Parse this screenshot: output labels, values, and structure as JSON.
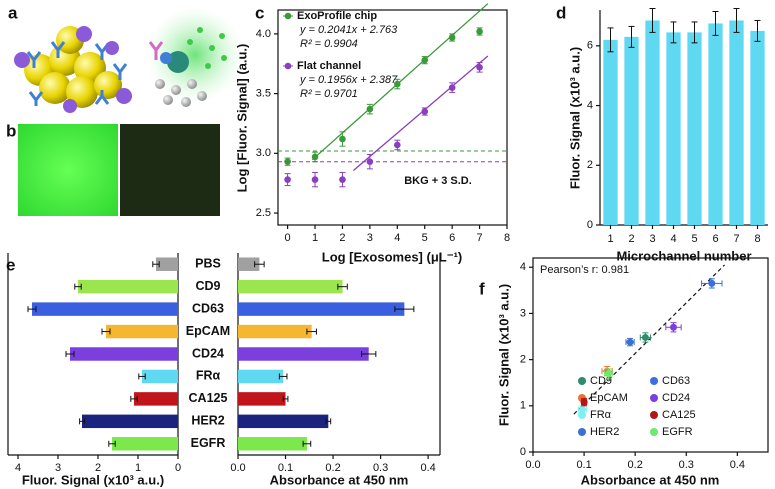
{
  "panel_a": {
    "label": "a"
  },
  "panel_b": {
    "label": "b"
  },
  "chart_data": [
    {
      "type": "line",
      "panel": "c",
      "xlabel": "Log [Exosomes] (μL⁻¹)",
      "ylabel": "Log [Fluor. Signal] (a.u.)",
      "x": [
        0,
        1,
        2,
        3,
        4,
        5,
        6,
        7
      ],
      "xlim": [
        -0.35,
        8
      ],
      "xticks": [
        0,
        1,
        2,
        3,
        4,
        5,
        6,
        7,
        8
      ],
      "ylim": [
        2.4,
        4.2
      ],
      "yticks": [
        {
          "value": 2.5,
          "label": "2.5"
        },
        {
          "value": 3,
          "label": "3.0"
        },
        {
          "value": 3.5,
          "label": "3.5"
        },
        {
          "value": 4,
          "label": "4.0"
        }
      ],
      "series": [
        {
          "name": "ExoProfile chip",
          "color": "#3a9a3a",
          "values": [
            2.93,
            2.97,
            3.12,
            3.37,
            3.58,
            3.78,
            3.97,
            4.02
          ],
          "errors": [
            0.03,
            0.04,
            0.06,
            0.04,
            0.04,
            0.03,
            0.03,
            0.03
          ],
          "equation": "y = 0.2041x + 2.763",
          "r2": "R² = 0.9904",
          "fit": {
            "slope": 0.2041,
            "intercept": 2.763,
            "x": [
              0.9,
              7.3
            ]
          },
          "background": 3.02
        },
        {
          "name": "Flat channel",
          "color": "#8a3fc0",
          "values": [
            2.78,
            2.78,
            2.78,
            2.93,
            3.07,
            3.35,
            3.55,
            3.72
          ],
          "errors": [
            0.05,
            0.06,
            0.06,
            0.06,
            0.04,
            0.03,
            0.04,
            0.04
          ],
          "equation": "y = 0.1956x + 2.387",
          "r2": "R² = 0.9701",
          "fit": {
            "slope": 0.1956,
            "intercept": 2.387,
            "x": [
              2.4,
              7.3
            ]
          },
          "background": 2.93
        }
      ],
      "background_label": "BKG + 3 S.D."
    },
    {
      "type": "bar",
      "panel": "d",
      "xlabel": "Microchannel number",
      "ylabel": "Fluor. Signal (x10³ a.u.)",
      "categories": [
        "1",
        "2",
        "3",
        "4",
        "5",
        "6",
        "7",
        "8"
      ],
      "values": [
        6.2,
        6.3,
        6.85,
        6.45,
        6.45,
        6.75,
        6.85,
        6.5
      ],
      "errors": [
        0.4,
        0.35,
        0.4,
        0.35,
        0.35,
        0.4,
        0.4,
        0.35
      ],
      "color": "#5fd8f2",
      "ylim": [
        0,
        7.2
      ],
      "yticks": [
        0,
        2,
        4,
        6
      ]
    },
    {
      "type": "mirrored-bar",
      "panel": "e",
      "categories": [
        "PBS",
        "CD9",
        "CD63",
        "EpCAM",
        "CD24",
        "FRα",
        "CA125",
        "HER2",
        "EGFR"
      ],
      "colors": [
        "#a0a0a0",
        "#9be64e",
        "#3a5fe0",
        "#f5b731",
        "#7b3fe0",
        "#5fd8f2",
        "#c0161b",
        "#1a237e",
        "#7de84b"
      ],
      "left": {
        "xlabel": "Fluor. Signal (x10³ a.u.)",
        "values": [
          0.55,
          2.5,
          3.65,
          1.8,
          2.7,
          0.9,
          1.1,
          2.4,
          1.65
        ],
        "errors": [
          0.08,
          0.08,
          0.1,
          0.1,
          0.1,
          0.08,
          0.08,
          0.06,
          0.08
        ],
        "xlim": [
          0,
          4.25
        ],
        "xticks": [
          4,
          3,
          2,
          1,
          0
        ]
      },
      "right": {
        "xlabel": "Absorbance at 450 nm",
        "values": [
          0.045,
          0.22,
          0.35,
          0.155,
          0.275,
          0.095,
          0.1,
          0.19,
          0.145
        ],
        "errors": [
          0.01,
          0.01,
          0.02,
          0.01,
          0.015,
          0.008,
          0.005,
          0.005,
          0.008
        ],
        "xlim": [
          0,
          0.425
        ],
        "xticks": [
          {
            "value": 0,
            "label": "0.0"
          },
          {
            "value": 0.1,
            "label": "0.1"
          },
          {
            "value": 0.2,
            "label": "0.2"
          },
          {
            "value": 0.3,
            "label": "0.3"
          },
          {
            "value": 0.4,
            "label": "0.4"
          }
        ]
      }
    },
    {
      "type": "scatter",
      "panel": "f",
      "xlabel": "Absorbance at 450 nm",
      "ylabel": "Fluor. Signal (x10³ a.u.)",
      "annotation": "Pearson’s r: 0.981",
      "xlim": [
        0,
        0.46
      ],
      "xticks": [
        {
          "value": 0,
          "label": "0.0"
        },
        {
          "value": 0.1,
          "label": "0.1"
        },
        {
          "value": 0.2,
          "label": "0.2"
        },
        {
          "value": 0.3,
          "label": "0.3"
        },
        {
          "value": 0.4,
          "label": "0.4"
        }
      ],
      "ylim": [
        0,
        4.2
      ],
      "yticks": [
        0,
        1,
        2,
        3,
        4
      ],
      "fit_line": {
        "x": [
          0.08,
          0.375
        ],
        "y": [
          0.82,
          4.05
        ]
      },
      "series": [
        {
          "name": "CD9",
          "color": "#2e8b6e",
          "x": [
            0.22
          ],
          "values": [
            2.48
          ],
          "xerr": [
            0.01
          ],
          "yerr": [
            0.1
          ]
        },
        {
          "name": "CD63",
          "color": "#3a6fe0",
          "x": [
            0.35
          ],
          "values": [
            3.65
          ],
          "xerr": [
            0.02
          ],
          "yerr": [
            0.1
          ]
        },
        {
          "name": "EpCAM",
          "color": "#f07030",
          "x": [
            0.145
          ],
          "values": [
            1.75
          ],
          "xerr": [
            0.01
          ],
          "yerr": [
            0.1
          ]
        },
        {
          "name": "CD24",
          "color": "#7b3fe0",
          "x": [
            0.275
          ],
          "values": [
            2.7
          ],
          "xerr": [
            0.015
          ],
          "yerr": [
            0.1
          ]
        },
        {
          "name": "FRα",
          "color": "#7ff0f0",
          "x": [
            0.097
          ],
          "values": [
            0.92
          ],
          "xerr": [
            0.008
          ],
          "yerr": [
            0.08
          ]
        },
        {
          "name": "CA125",
          "color": "#b01818",
          "x": [
            0.1
          ],
          "values": [
            1.08
          ],
          "xerr": [
            0.005
          ],
          "yerr": [
            0.08
          ]
        },
        {
          "name": "HER2",
          "color": "#3a70d0",
          "x": [
            0.19
          ],
          "values": [
            2.38
          ],
          "xerr": [
            0.008
          ],
          "yerr": [
            0.08
          ]
        },
        {
          "name": "EGFR",
          "color": "#6ee86e",
          "x": [
            0.148
          ],
          "values": [
            1.7
          ],
          "xerr": [
            0.008
          ],
          "yerr": [
            0.1
          ]
        }
      ]
    }
  ]
}
